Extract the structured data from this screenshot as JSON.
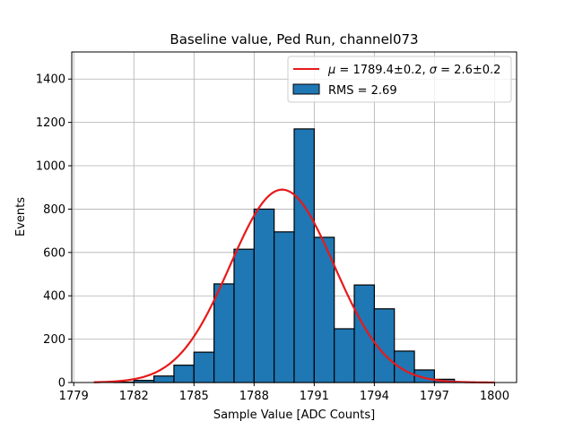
{
  "chart_data": {
    "type": "bar",
    "title": "Baseline value, Ped Run, channel073",
    "xlabel": "Sample Value [ADC Counts]",
    "ylabel": "Events",
    "xlim": [
      1778.9,
      1801.1
    ],
    "ylim": [
      0,
      1525
    ],
    "xticks": [
      1779,
      1782,
      1785,
      1788,
      1791,
      1794,
      1797,
      1800
    ],
    "yticks": [
      0,
      200,
      400,
      600,
      800,
      1000,
      1200,
      1400
    ],
    "grid": true,
    "legend_position": "top-right",
    "histogram": {
      "name": "RMS = 2.69",
      "color": "#1f77b4",
      "bins": [
        {
          "x0": 1781.0,
          "x1": 1782.0,
          "value": 2
        },
        {
          "x0": 1782.0,
          "x1": 1783.0,
          "value": 10
        },
        {
          "x0": 1783.0,
          "x1": 1784.0,
          "value": 30
        },
        {
          "x0": 1784.0,
          "x1": 1785.0,
          "value": 80
        },
        {
          "x0": 1785.0,
          "x1": 1786.0,
          "value": 140
        },
        {
          "x0": 1786.0,
          "x1": 1787.0,
          "value": 455
        },
        {
          "x0": 1787.0,
          "x1": 1788.0,
          "value": 615
        },
        {
          "x0": 1788.0,
          "x1": 1789.0,
          "value": 800
        },
        {
          "x0": 1789.0,
          "x1": 1790.0,
          "value": 695
        },
        {
          "x0": 1790.0,
          "x1": 1791.0,
          "value": 1170
        },
        {
          "x0": 1791.0,
          "x1": 1792.0,
          "value": 670
        },
        {
          "x0": 1792.0,
          "x1": 1793.0,
          "value": 248
        },
        {
          "x0": 1793.0,
          "x1": 1794.0,
          "value": 450
        },
        {
          "x0": 1794.0,
          "x1": 1795.0,
          "value": 340
        },
        {
          "x0": 1795.0,
          "x1": 1796.0,
          "value": 145
        },
        {
          "x0": 1796.0,
          "x1": 1797.0,
          "value": 58
        },
        {
          "x0": 1797.0,
          "x1": 1798.0,
          "value": 15
        },
        {
          "x0": 1798.0,
          "x1": 1799.0,
          "value": 2
        }
      ]
    },
    "fit": {
      "name": "μ = 1789.4±0.2, σ = 2.6±0.2",
      "mu_label": "μ",
      "sigma_label": "σ",
      "mu_text": " = 1789.4±0.2, ",
      "sigma_text": " = 2.6±0.2",
      "color": "#e8191a",
      "mu": 1789.4,
      "sigma": 2.6,
      "amplitude": 890,
      "x_range": [
        1780,
        1800
      ]
    }
  }
}
